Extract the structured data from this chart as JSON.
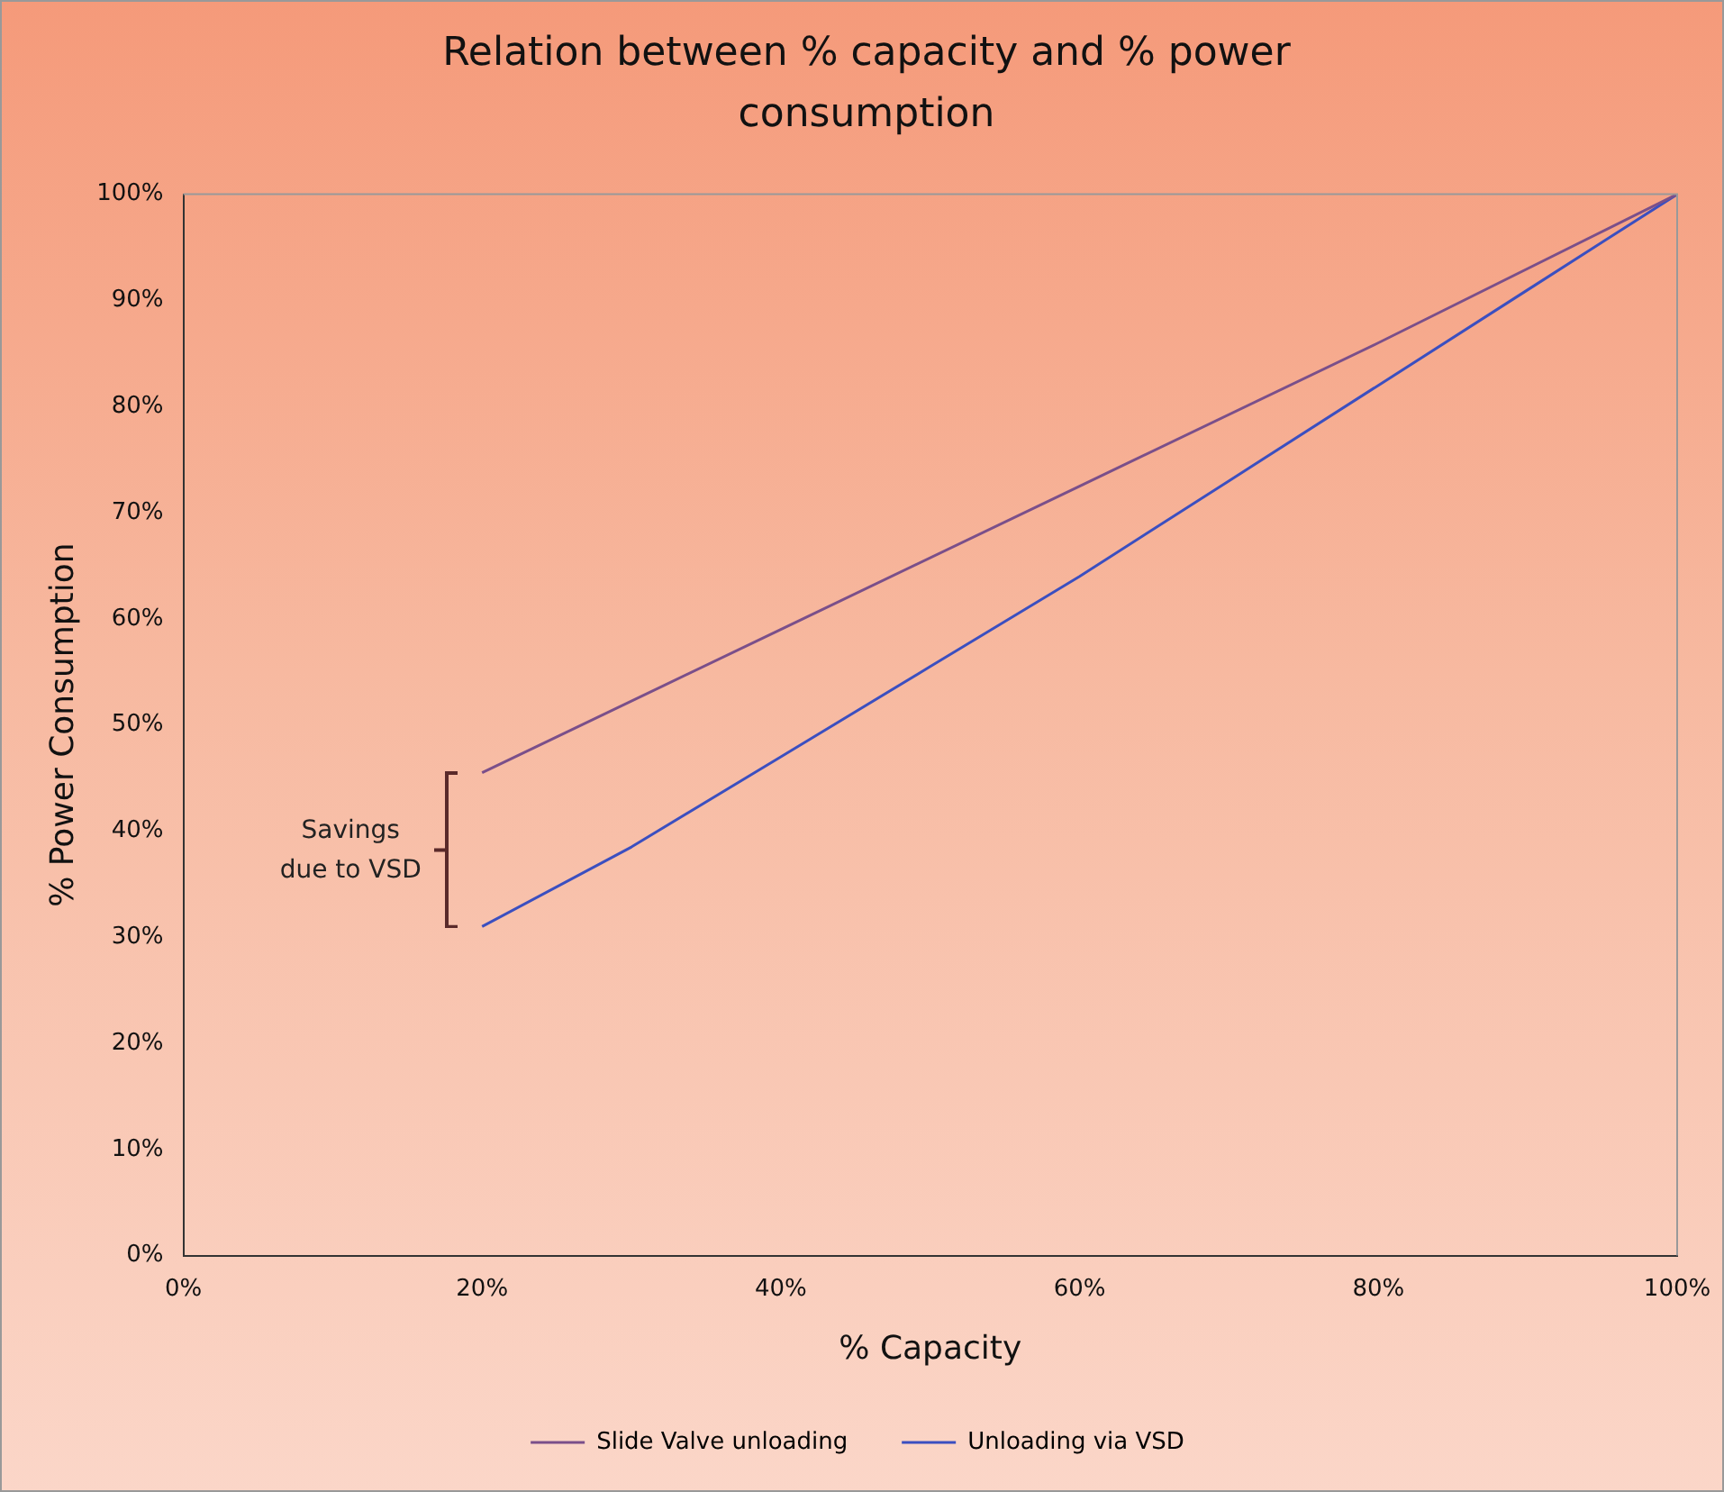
{
  "chart_data": {
    "type": "line",
    "title": "Relation between % capacity and % power consumption",
    "xlabel": "% Capacity",
    "ylabel": "% Power Consumption",
    "series": [
      {
        "name": "Slide Valve unloading",
        "color": "#7a4f8a",
        "x": [
          20,
          40,
          60,
          80,
          100
        ],
        "values": [
          45.5,
          59,
          72.5,
          86,
          100
        ]
      },
      {
        "name": "Unloading via VSD",
        "color": "#3b4fc0",
        "x": [
          20,
          30,
          40,
          50,
          60,
          70,
          80,
          90,
          100
        ],
        "values": [
          31,
          38.5,
          47,
          55.5,
          64,
          73,
          82,
          91,
          100
        ]
      }
    ],
    "xlim": [
      0,
      100
    ],
    "ylim": [
      0,
      100
    ],
    "xticks": [
      {
        "value": 0,
        "label": "0%"
      },
      {
        "value": 20,
        "label": "20%"
      },
      {
        "value": 40,
        "label": "40%"
      },
      {
        "value": 60,
        "label": "60%"
      },
      {
        "value": 80,
        "label": "80%"
      },
      {
        "value": 100,
        "label": "100%"
      }
    ],
    "yticks": [
      {
        "value": 0,
        "label": "0%"
      },
      {
        "value": 10,
        "label": "10%"
      },
      {
        "value": 20,
        "label": "20%"
      },
      {
        "value": 30,
        "label": "30%"
      },
      {
        "value": 40,
        "label": "40%"
      },
      {
        "value": 50,
        "label": "50%"
      },
      {
        "value": 60,
        "label": "60%"
      },
      {
        "value": 70,
        "label": "70%"
      },
      {
        "value": 80,
        "label": "80%"
      },
      {
        "value": 90,
        "label": "90%"
      },
      {
        "value": 100,
        "label": "100%"
      }
    ],
    "annotations": [
      "Savings due to VSD"
    ],
    "grid": false,
    "legend": "bottom",
    "marker": "none",
    "line_style": "solid"
  }
}
